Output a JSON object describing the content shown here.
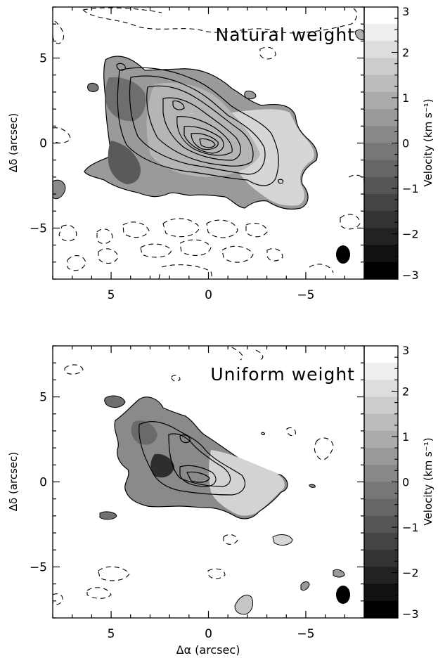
{
  "figure": {
    "xlabel": "Δα (arcsec)",
    "ylabel": "Δδ (arcsec)",
    "colorbar_label": "Velocity (km s⁻¹)"
  },
  "chart_data": [
    {
      "type": "heatmap",
      "title": "Natural weight",
      "xlabel": "",
      "ylabel": "Δδ (arcsec)",
      "xlim": [
        8,
        -8
      ],
      "ylim": [
        -8,
        8
      ],
      "x_ticks": [
        5,
        0,
        -5
      ],
      "y_ticks": [
        5,
        0,
        -5
      ],
      "grid": false,
      "colorbar": {
        "label": "Velocity (km s⁻¹)",
        "range": [
          -3,
          3
        ],
        "ticks": [
          3,
          2,
          1,
          0,
          -1,
          -2,
          -3
        ],
        "colormap": "grayscale",
        "levels": 16
      },
      "emission_peak": [
        0,
        0
      ],
      "contours": {
        "negative": "dashed",
        "positive": "solid"
      },
      "beam": [
        -6.8,
        -6.6
      ]
    },
    {
      "type": "heatmap",
      "title": "Uniform weight",
      "xlabel": "Δα (arcsec)",
      "ylabel": "Δδ (arcsec)",
      "xlim": [
        8,
        -8
      ],
      "ylim": [
        -8,
        8
      ],
      "x_ticks": [
        5,
        0,
        -5
      ],
      "y_ticks": [
        5,
        0,
        -5
      ],
      "grid": false,
      "colorbar": {
        "label": "Velocity (km s⁻¹)",
        "range": [
          -3,
          3
        ],
        "ticks": [
          3,
          2,
          1,
          0,
          -1,
          -2,
          -3
        ],
        "colormap": "grayscale",
        "levels": 16
      },
      "emission_peak": [
        0,
        0
      ],
      "contours": {
        "negative": "dashed",
        "positive": "solid"
      },
      "beam": [
        -6.8,
        -6.6
      ]
    }
  ]
}
